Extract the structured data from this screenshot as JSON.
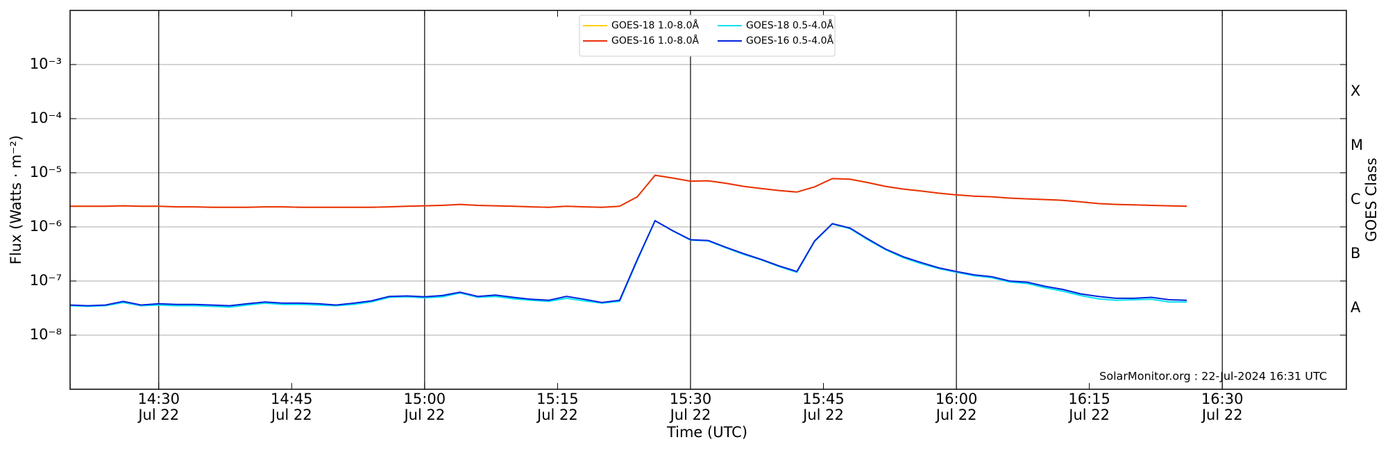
{
  "chart_data": {
    "type": "line",
    "x_label": "Time (UTC)",
    "y_label": "Flux (Watts · m⁻²)",
    "y2_label": "GOES Class",
    "annotation": "SolarMonitor.org : 22-Jul-2024 16:31 UTC",
    "yscale": "log",
    "grid": true,
    "legend": "upper center",
    "xlim": [
      "14:20",
      "16:44"
    ],
    "xticks": [
      "14:30",
      "14:45",
      "15:00",
      "15:15",
      "15:30",
      "15:45",
      "16:00",
      "16:15",
      "16:30"
    ],
    "xtick_date": "Jul 22",
    "ylim": [
      1e-09,
      0.01
    ],
    "yticks": [
      {
        "value": 1e-08,
        "label": "10⁻⁸"
      },
      {
        "value": 1e-07,
        "label": "10⁻⁷"
      },
      {
        "value": 1e-06,
        "label": "10⁻⁶"
      },
      {
        "value": 1e-05,
        "label": "10⁻⁵"
      },
      {
        "value": 0.0001,
        "label": "10⁻⁴"
      },
      {
        "value": 0.001,
        "label": "10⁻³"
      }
    ],
    "y2lim": [
      1e-09,
      0.01
    ],
    "y2ticks": [
      {
        "value": 3.16e-08,
        "label": "A"
      },
      {
        "value": 3.16e-07,
        "label": "B"
      },
      {
        "value": 3.16e-06,
        "label": "C"
      },
      {
        "value": 3.16e-05,
        "label": "M"
      },
      {
        "value": 0.000316,
        "label": "X"
      }
    ],
    "x": [
      "14:20",
      "14:22",
      "14:24",
      "14:26",
      "14:28",
      "14:30",
      "14:32",
      "14:34",
      "14:36",
      "14:38",
      "14:40",
      "14:42",
      "14:44",
      "14:46",
      "14:48",
      "14:50",
      "14:52",
      "14:54",
      "14:56",
      "14:58",
      "15:00",
      "15:02",
      "15:04",
      "15:06",
      "15:08",
      "15:10",
      "15:12",
      "15:14",
      "15:16",
      "15:18",
      "15:20",
      "15:22",
      "15:24",
      "15:26",
      "15:28",
      "15:30",
      "15:32",
      "15:34",
      "15:36",
      "15:38",
      "15:40",
      "15:42",
      "15:44",
      "15:46",
      "15:48",
      "15:50",
      "15:52",
      "15:54",
      "15:56",
      "15:58",
      "16:00",
      "16:02",
      "16:04",
      "16:06",
      "16:08",
      "16:10",
      "16:12",
      "16:14",
      "16:16",
      "16:18",
      "16:20",
      "16:22",
      "16:24",
      "16:26"
    ],
    "series": [
      {
        "name": "GOES-18 1.0-8.0Å",
        "color": "#ffd000",
        "values": [
          2.4e-06,
          2.4e-06,
          2.4e-06,
          2.45e-06,
          2.4e-06,
          2.4e-06,
          2.35e-06,
          2.35e-06,
          2.3e-06,
          2.3e-06,
          2.3e-06,
          2.35e-06,
          2.35e-06,
          2.3e-06,
          2.3e-06,
          2.3e-06,
          2.3e-06,
          2.3e-06,
          2.35e-06,
          2.4e-06,
          2.45e-06,
          2.5e-06,
          2.6e-06,
          2.5e-06,
          2.45e-06,
          2.4e-06,
          2.35e-06,
          2.3e-06,
          2.4e-06,
          2.35e-06,
          2.3e-06,
          2.4e-06,
          3.6e-06,
          9e-06,
          8e-06,
          7e-06,
          7.1e-06,
          6.4e-06,
          5.6e-06,
          5.1e-06,
          4.7e-06,
          4.4e-06,
          5.5e-06,
          7.8e-06,
          7.6e-06,
          6.6e-06,
          5.6e-06,
          5e-06,
          4.6e-06,
          4.2e-06,
          3.9e-06,
          3.7e-06,
          3.6e-06,
          3.4e-06,
          3.3e-06,
          3.2e-06,
          3.1e-06,
          2.9e-06,
          2.7e-06,
          2.6e-06,
          2.55e-06,
          2.5e-06,
          2.45e-06,
          2.4e-06
        ]
      },
      {
        "name": "GOES-16 1.0-8.0Å",
        "color": "#e8300e",
        "values": [
          2.4e-06,
          2.4e-06,
          2.4e-06,
          2.45e-06,
          2.4e-06,
          2.4e-06,
          2.35e-06,
          2.35e-06,
          2.3e-06,
          2.3e-06,
          2.3e-06,
          2.35e-06,
          2.35e-06,
          2.3e-06,
          2.3e-06,
          2.3e-06,
          2.3e-06,
          2.3e-06,
          2.35e-06,
          2.4e-06,
          2.45e-06,
          2.5e-06,
          2.6e-06,
          2.5e-06,
          2.45e-06,
          2.4e-06,
          2.35e-06,
          2.3e-06,
          2.4e-06,
          2.35e-06,
          2.3e-06,
          2.4e-06,
          3.6e-06,
          9e-06,
          8e-06,
          7e-06,
          7.1e-06,
          6.4e-06,
          5.6e-06,
          5.1e-06,
          4.7e-06,
          4.4e-06,
          5.5e-06,
          7.8e-06,
          7.6e-06,
          6.6e-06,
          5.6e-06,
          5e-06,
          4.6e-06,
          4.2e-06,
          3.9e-06,
          3.7e-06,
          3.6e-06,
          3.4e-06,
          3.3e-06,
          3.2e-06,
          3.1e-06,
          2.9e-06,
          2.7e-06,
          2.6e-06,
          2.55e-06,
          2.5e-06,
          2.45e-06,
          2.4e-06
        ]
      },
      {
        "name": "GOES-18 0.5-4.0Å",
        "color": "#00e0f0",
        "values": [
          3.5e-08,
          3.4e-08,
          3.5e-08,
          4e-08,
          3.5e-08,
          3.6e-08,
          3.5e-08,
          3.5e-08,
          3.4e-08,
          3.3e-08,
          3.6e-08,
          3.9e-08,
          3.7e-08,
          3.7e-08,
          3.6e-08,
          3.5e-08,
          3.7e-08,
          4.1e-08,
          5e-08,
          5.1e-08,
          4.9e-08,
          5.1e-08,
          6e-08,
          5e-08,
          5.2e-08,
          4.7e-08,
          4.4e-08,
          4.2e-08,
          4.8e-08,
          4.3e-08,
          3.9e-08,
          4.2e-08,
          2.4e-07,
          1.3e-06,
          8.4e-07,
          5.7e-07,
          5.5e-07,
          4.1e-07,
          3.1e-07,
          2.45e-07,
          1.85e-07,
          1.45e-07,
          5.4e-07,
          1.13e-06,
          9.3e-07,
          5.8e-07,
          3.8e-07,
          2.7e-07,
          2.1e-07,
          1.7e-07,
          1.45e-07,
          1.25e-07,
          1.15e-07,
          9.6e-08,
          9e-08,
          7.5e-08,
          6.5e-08,
          5.4e-08,
          4.7e-08,
          4.4e-08,
          4.5e-08,
          4.6e-08,
          4.1e-08,
          4.1e-08
        ]
      },
      {
        "name": "GOES-16 0.5-4.0Å",
        "color": "#0022dd",
        "values": [
          3.6e-08,
          3.5e-08,
          3.6e-08,
          4.2e-08,
          3.6e-08,
          3.8e-08,
          3.7e-08,
          3.7e-08,
          3.6e-08,
          3.5e-08,
          3.8e-08,
          4.1e-08,
          3.9e-08,
          3.9e-08,
          3.8e-08,
          3.6e-08,
          3.9e-08,
          4.3e-08,
          5.2e-08,
          5.3e-08,
          5.1e-08,
          5.4e-08,
          6.2e-08,
          5.2e-08,
          5.5e-08,
          5e-08,
          4.6e-08,
          4.4e-08,
          5.2e-08,
          4.6e-08,
          4e-08,
          4.4e-08,
          2.5e-07,
          1.3e-06,
          8.5e-07,
          5.8e-07,
          5.6e-07,
          4.2e-07,
          3.2e-07,
          2.5e-07,
          1.9e-07,
          1.5e-07,
          5.5e-07,
          1.15e-06,
          9.5e-07,
          6e-07,
          3.9e-07,
          2.8e-07,
          2.2e-07,
          1.75e-07,
          1.5e-07,
          1.3e-07,
          1.2e-07,
          1e-07,
          9.5e-08,
          8e-08,
          7e-08,
          5.8e-08,
          5.2e-08,
          4.8e-08,
          4.8e-08,
          5e-08,
          4.5e-08,
          4.4e-08
        ]
      }
    ]
  }
}
